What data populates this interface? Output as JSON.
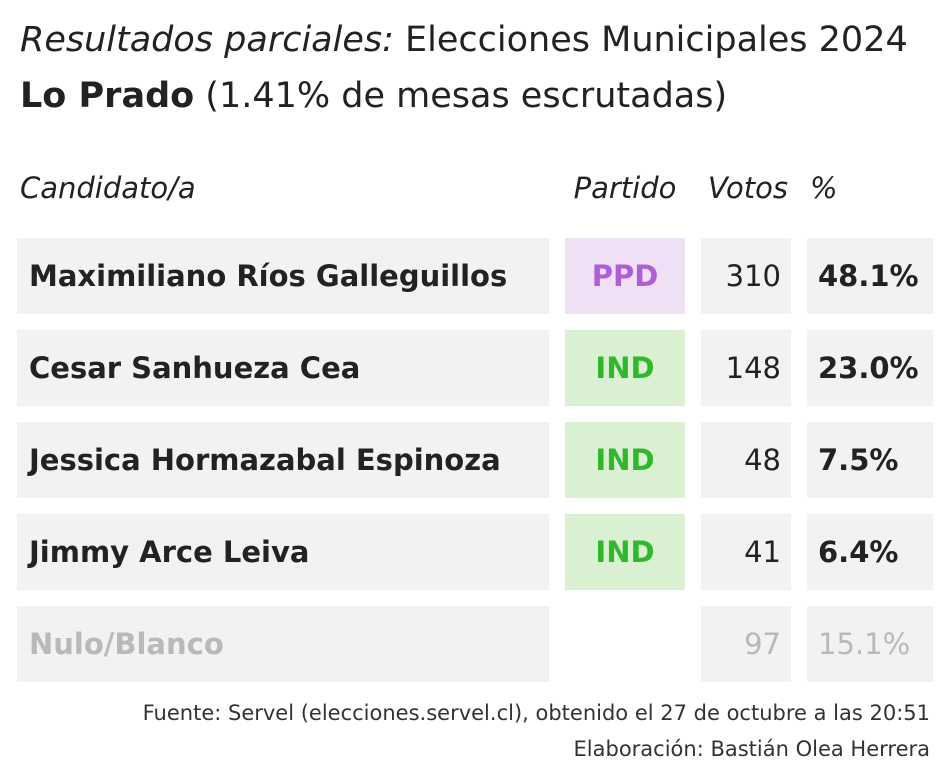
{
  "header": {
    "title_lead": "Resultados parciales:",
    "title_rest": " Elecciones Municipales 2024",
    "commune": "Lo Prado",
    "progress": " (1.41% de mesas escrutadas)"
  },
  "columns": {
    "candidate": "Candidato/a",
    "party": "Partido",
    "votes": "Votos",
    "percent": "%"
  },
  "rows": [
    {
      "name": "Maximiliano Ríos Galleguillos",
      "party": "PPD",
      "votes": "310",
      "percent": "48.1%"
    },
    {
      "name": "Cesar Sanhueza Cea",
      "party": "IND",
      "votes": "148",
      "percent": "23.0%"
    },
    {
      "name": "Jessica Hormazabal Espinoza",
      "party": "IND",
      "votes": "48",
      "percent": "7.5%"
    },
    {
      "name": "Jimmy Arce Leiva",
      "party": "IND",
      "votes": "41",
      "percent": "6.4%"
    },
    {
      "name": "Nulo/Blanco",
      "party": "",
      "votes": "97",
      "percent": "15.1%"
    }
  ],
  "party_colors": {
    "PPD": {
      "text": "#b05ed6",
      "background": "#efe0f5"
    },
    "IND": {
      "text": "#2fb82a",
      "background": "#d9f0d2"
    }
  },
  "footer": {
    "source": "Fuente: Servel (elecciones.servel.cl), obtenido el 27 de octubre a las 20:51",
    "credit": "Elaboración: Bastián Olea Herrera"
  }
}
